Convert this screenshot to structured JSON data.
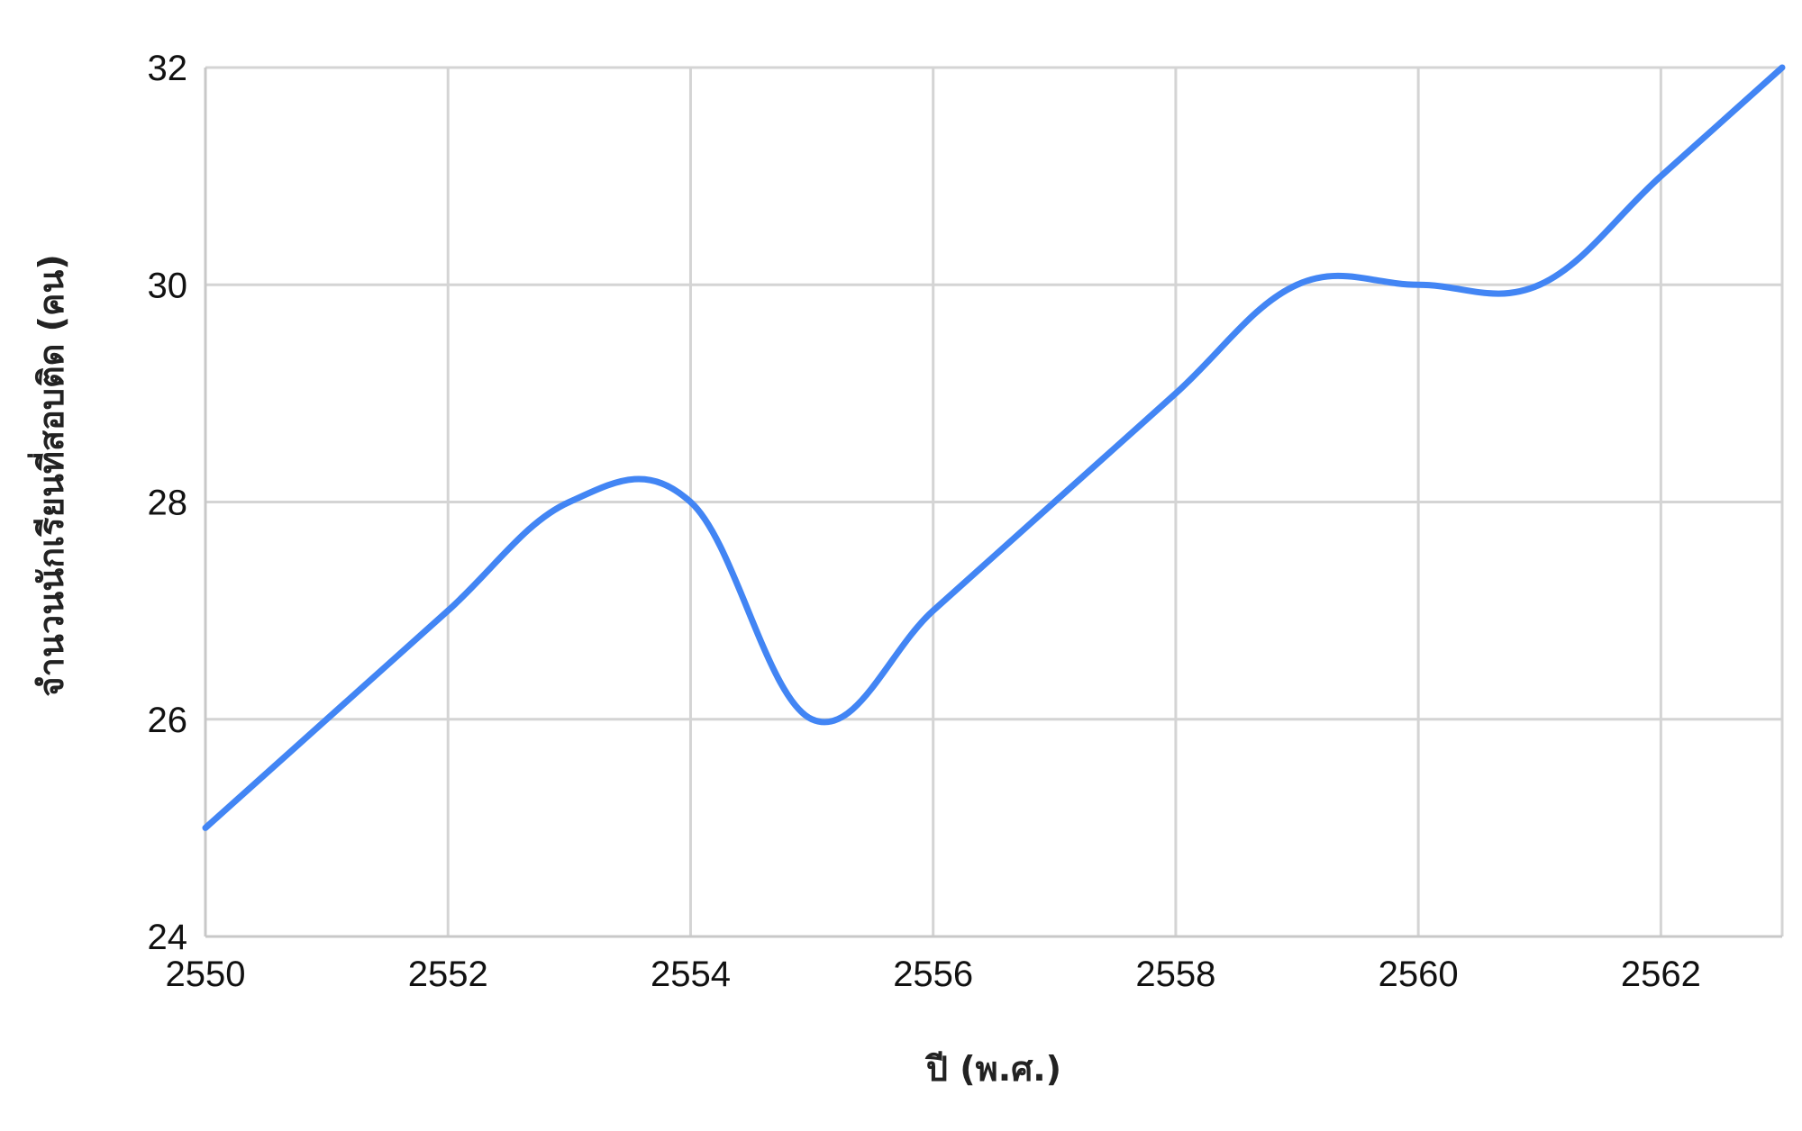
{
  "chart_data": {
    "type": "line",
    "title": "",
    "xlabel": "ปี (พ.ศ.)",
    "ylabel": "จำนวนนักเรียนที่สอบติด (คน)",
    "xlim": [
      2550,
      2563
    ],
    "ylim": [
      24,
      32
    ],
    "x_ticks": [
      2550,
      2552,
      2554,
      2556,
      2558,
      2560,
      2562
    ],
    "y_ticks": [
      24,
      26,
      28,
      30,
      32
    ],
    "x_tick_labels": [
      "2550",
      "2552",
      "2554",
      "2556",
      "2558",
      "2560",
      "2562"
    ],
    "y_tick_labels": [
      "24",
      "26",
      "28",
      "30",
      "32"
    ],
    "grid": true,
    "legend": "none",
    "smooth": true,
    "series": [
      {
        "color": "#4285f4",
        "x": [
          2550,
          2551,
          2552,
          2553,
          2554,
          2555,
          2556,
          2557,
          2558,
          2559,
          2560,
          2561,
          2562,
          2563
        ],
        "values": [
          25,
          26,
          27,
          28,
          28,
          26,
          27,
          28,
          29,
          30,
          30,
          30,
          31,
          32
        ]
      }
    ]
  }
}
